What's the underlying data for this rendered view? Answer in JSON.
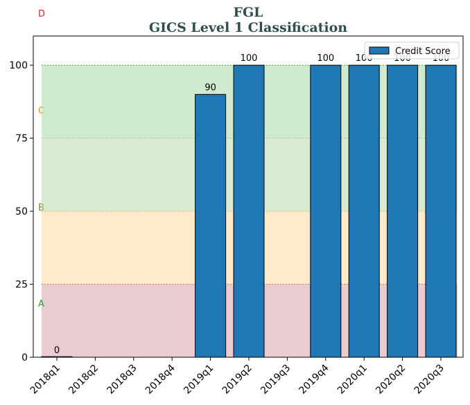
{
  "chart_data": {
    "type": "bar",
    "title": "FGL",
    "subtitle": "GICS Level 1 Classification",
    "categories": [
      "2018q1",
      "2018q2",
      "2018q3",
      "2018q4",
      "2019q1",
      "2019q2",
      "2019q3",
      "2019q4",
      "2020q1",
      "2020q2",
      "2020q3"
    ],
    "series": [
      {
        "name": "Credit Score",
        "values": [
          0,
          null,
          null,
          null,
          90,
          100,
          null,
          100,
          100,
          100,
          100
        ],
        "color": "#1f77b4"
      }
    ],
    "ylim": [
      0,
      110
    ],
    "yticks": [
      0,
      25,
      50,
      75,
      100
    ],
    "grid": false,
    "legend": "top-right",
    "bands": [
      {
        "label": "A",
        "from": 0,
        "to": 25,
        "fill": "#d9a0a8",
        "line": "#c0392b",
        "label_color": "#2ca02c"
      },
      {
        "label": "B",
        "from": 25,
        "to": 50,
        "fill": "#ffd9a0",
        "line": "#ff8c00",
        "label_color": "#6b8e23"
      },
      {
        "label": "C",
        "from": 50,
        "to": 75,
        "fill": "#b8d8a8",
        "line": "#8fbc5a",
        "label_color": "#ff8c00"
      },
      {
        "label": "D",
        "from": 75,
        "to": 100,
        "fill": "#a8d8a8",
        "line": "#2ca02c",
        "label_color": "#d62728"
      }
    ]
  }
}
